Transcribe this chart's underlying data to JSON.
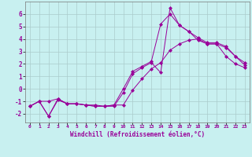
{
  "xlabel": "Windchill (Refroidissement éolien,°C)",
  "bg_color": "#c8f0f0",
  "line_color": "#990099",
  "grid_color": "#aacccc",
  "xlim": [
    -0.5,
    23.5
  ],
  "ylim": [
    -2.7,
    7.0
  ],
  "xticks": [
    0,
    1,
    2,
    3,
    4,
    5,
    6,
    7,
    8,
    9,
    10,
    11,
    12,
    13,
    14,
    15,
    16,
    17,
    18,
    19,
    20,
    21,
    22,
    23
  ],
  "yticks": [
    -2,
    -1,
    0,
    1,
    2,
    3,
    4,
    5,
    6
  ],
  "lines": [
    {
      "x": [
        0,
        1,
        2,
        3,
        4,
        5,
        6,
        7,
        8,
        9,
        10,
        11,
        12,
        13,
        14,
        15,
        16,
        17,
        18,
        19,
        20,
        21,
        22,
        23
      ],
      "y": [
        -1.4,
        -1.0,
        -1.0,
        -0.8,
        -1.2,
        -1.2,
        -1.3,
        -1.3,
        -1.4,
        -1.3,
        -1.3,
        -0.1,
        0.8,
        1.6,
        2.1,
        3.1,
        3.6,
        3.9,
        4.0,
        3.6,
        3.6,
        2.6,
        2.0,
        1.7
      ]
    },
    {
      "x": [
        0,
        1,
        2,
        3,
        4,
        5,
        6,
        7,
        8,
        9,
        10,
        11,
        12,
        13,
        14,
        15,
        16,
        17,
        18,
        19,
        20,
        21,
        22,
        23
      ],
      "y": [
        -1.4,
        -1.0,
        -2.2,
        -0.8,
        -1.2,
        -1.2,
        -1.3,
        -1.4,
        -1.4,
        -1.4,
        -0.3,
        1.2,
        1.7,
        2.1,
        1.3,
        6.5,
        5.1,
        4.6,
        4.1,
        3.7,
        3.7,
        3.4,
        2.6,
        1.9
      ]
    },
    {
      "x": [
        0,
        1,
        2,
        3,
        4,
        5,
        6,
        7,
        8,
        9,
        10,
        11,
        12,
        13,
        14,
        15,
        16,
        17,
        18,
        19,
        20,
        21,
        22,
        23
      ],
      "y": [
        -1.4,
        -1.0,
        -2.2,
        -0.9,
        -1.2,
        -1.2,
        -1.3,
        -1.4,
        -1.4,
        -1.3,
        0.0,
        1.4,
        1.8,
        2.2,
        5.2,
        6.0,
        5.1,
        4.6,
        3.9,
        3.6,
        3.6,
        3.3,
        2.6,
        2.1
      ]
    }
  ]
}
